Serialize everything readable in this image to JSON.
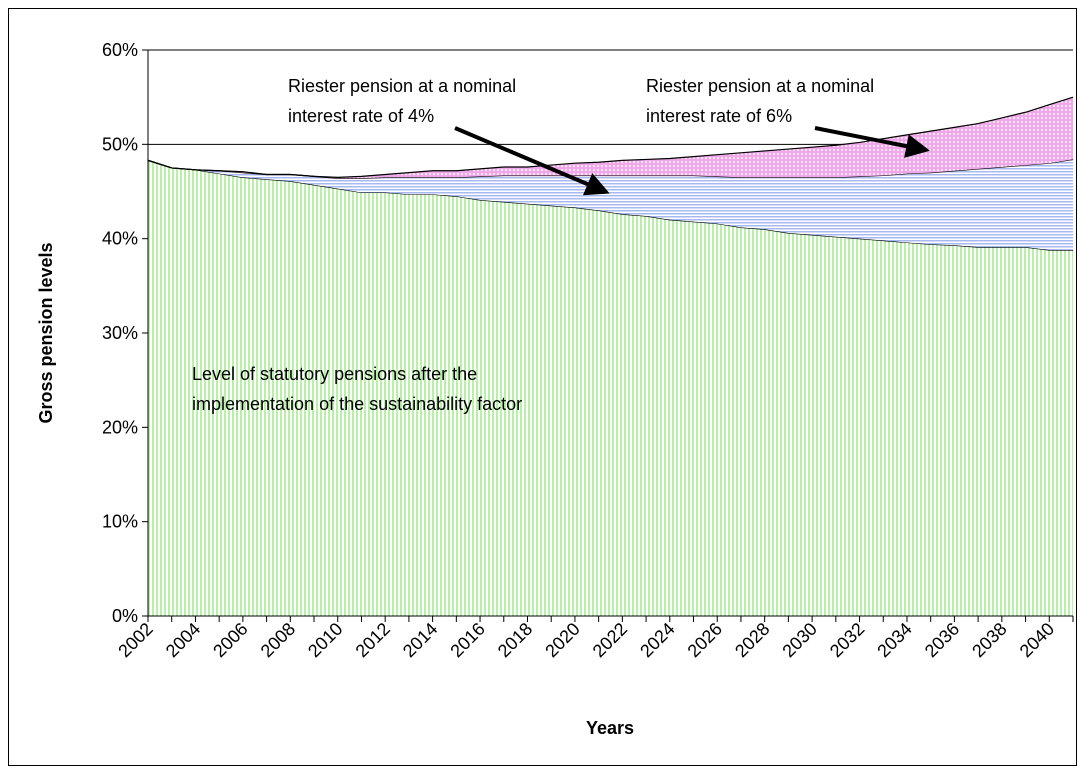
{
  "chart_data": {
    "type": "stacked_area",
    "y_label": "Gross pension levels",
    "x_label": "Years",
    "categories": [
      "2002",
      null,
      "2004",
      null,
      "2006",
      null,
      "2008",
      null,
      "2010",
      null,
      "2012",
      null,
      "2014",
      null,
      "2016",
      null,
      "2018",
      null,
      "2020",
      null,
      "2022",
      null,
      "2024",
      null,
      "2026",
      null,
      "2028",
      null,
      "2030",
      null,
      "2032",
      null,
      "2034",
      null,
      "2036",
      null,
      "2038",
      null,
      "2040",
      null
    ],
    "series": [
      {
        "name": "Level of statutory pensions after the implementation of the sustainability factor",
        "color": "#b8f0a8",
        "values": [
          48.3,
          47.5,
          47.3,
          46.9,
          46.5,
          46.3,
          46.1,
          45.7,
          45.3,
          44.9,
          44.9,
          44.7,
          44.7,
          44.5,
          44.1,
          43.9,
          43.7,
          43.5,
          43.3,
          43.0,
          42.6,
          42.4,
          42.0,
          41.8,
          41.6,
          41.2,
          41.0,
          40.6,
          40.4,
          40.2,
          40.0,
          39.8,
          39.6,
          39.4,
          39.3,
          39.1,
          39.1,
          39.1,
          38.8,
          38.8
        ]
      },
      {
        "name": "Riester pension at a nominal interest rate of 4%",
        "color": "#a8b8f0",
        "values": [
          0,
          0,
          0,
          0.3,
          0.5,
          0.5,
          0.7,
          0.9,
          1.1,
          1.5,
          1.6,
          1.8,
          1.8,
          2.0,
          2.5,
          2.8,
          3.0,
          3.2,
          3.4,
          3.7,
          4.1,
          4.3,
          4.7,
          4.9,
          5.0,
          5.3,
          5.5,
          5.9,
          6.1,
          6.3,
          6.6,
          6.9,
          7.3,
          7.6,
          7.9,
          8.3,
          8.5,
          8.7,
          9.2,
          9.6
        ]
      },
      {
        "name": "Riester pension at a nominal interest rate of 6%",
        "color": "#f0a8e8",
        "values": [
          0,
          0,
          0,
          0,
          0.1,
          0,
          0,
          0,
          0.1,
          0.2,
          0.3,
          0.5,
          0.7,
          0.7,
          0.8,
          0.9,
          0.9,
          1.1,
          1.3,
          1.4,
          1.6,
          1.7,
          1.8,
          2.0,
          2.3,
          2.6,
          2.8,
          3.0,
          3.2,
          3.4,
          3.6,
          3.9,
          4.1,
          4.4,
          4.6,
          4.8,
          5.2,
          5.6,
          6.2,
          6.6
        ]
      }
    ],
    "annotations": [
      {
        "lines": [
          "Level of statutory pensions after the",
          "implementation of the sustainability factor"
        ]
      },
      {
        "lines": [
          "Riester pension at a nominal",
          "interest rate of 4%"
        ]
      },
      {
        "lines": [
          "Riester pension at a nominal",
          "interest rate of 6%"
        ]
      }
    ],
    "ylim": [
      0,
      60
    ],
    "yticks": [
      {
        "value": 0,
        "label": "0%"
      },
      {
        "value": 10,
        "label": "10%"
      },
      {
        "value": 20,
        "label": "20%"
      },
      {
        "value": 30,
        "label": "30%"
      },
      {
        "value": 40,
        "label": "40%"
      },
      {
        "value": 50,
        "label": "50%"
      },
      {
        "value": 60,
        "label": "60%"
      }
    ],
    "grid": true
  }
}
